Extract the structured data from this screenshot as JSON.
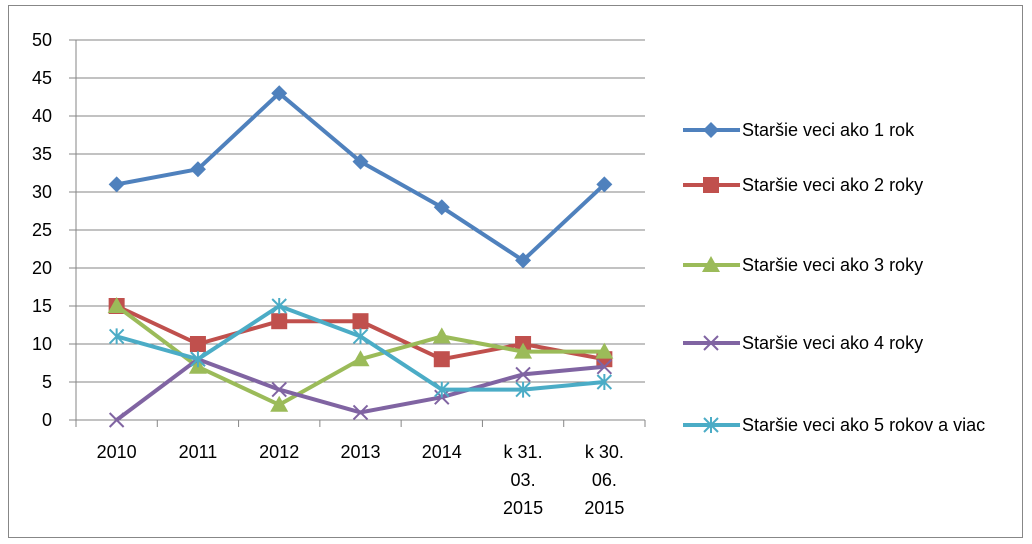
{
  "chart_data": {
    "type": "line",
    "categories": [
      "2010",
      "2011",
      "2012",
      "2013",
      "2014",
      "k 31. 03. 2015",
      "k 30. 06. 2015"
    ],
    "series": [
      {
        "name": "Staršie veci ako 1 rok",
        "color": "#4f81bd",
        "marker": "diamond",
        "values": [
          31,
          33,
          43,
          34,
          28,
          21,
          31
        ]
      },
      {
        "name": "Staršie veci ako 2 roky",
        "color": "#c0504d",
        "marker": "square",
        "values": [
          15,
          10,
          13,
          13,
          8,
          10,
          8
        ]
      },
      {
        "name": "Staršie veci ako 3 roky",
        "color": "#9bbb59",
        "marker": "triangle",
        "values": [
          15,
          7,
          2,
          8,
          11,
          9,
          9
        ]
      },
      {
        "name": "Staršie veci ako 4 roky",
        "color": "#8064a2",
        "marker": "x",
        "values": [
          0,
          8,
          4,
          1,
          3,
          6,
          7
        ]
      },
      {
        "name": "Staršie veci ako 5 rokov a viac",
        "color": "#4bacc6",
        "marker": "star",
        "values": [
          11,
          8,
          15,
          11,
          4,
          4,
          5
        ]
      }
    ],
    "ylim": [
      0,
      50
    ],
    "yticks": [
      0,
      5,
      10,
      15,
      20,
      25,
      30,
      35,
      40,
      45,
      50
    ],
    "grid": true,
    "legend": "right"
  }
}
